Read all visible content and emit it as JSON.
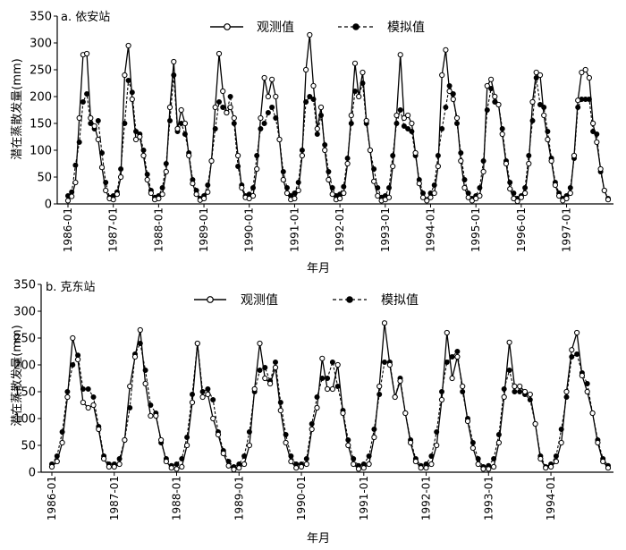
{
  "chart_data": [
    {
      "type": "line",
      "panel_label": "a. 依安站",
      "xlabel": "年月",
      "ylabel": "潜在蒸散发量(mm)",
      "ylim": [
        0,
        350
      ],
      "yticks": [
        0,
        50,
        100,
        150,
        200,
        250,
        300,
        350
      ],
      "x_start": "1986-01",
      "x_end": "1997-12",
      "xtick_labels": [
        "1986-01",
        "1987-01",
        "1988-01",
        "1989-01",
        "1990-01",
        "1991-01",
        "1992-01",
        "1993-01",
        "1994-01",
        "1995-01",
        "1996-01",
        "1997-01"
      ],
      "legend_position": "top-center",
      "series": [
        {
          "name": "观测值",
          "marker": "open-circle",
          "line": "solid",
          "values": [
            6,
            14,
            40,
            160,
            278,
            280,
            160,
            145,
            120,
            68,
            25,
            10,
            8,
            18,
            50,
            240,
            295,
            195,
            120,
            125,
            90,
            45,
            20,
            8,
            10,
            18,
            60,
            180,
            265,
            140,
            175,
            150,
            90,
            38,
            18,
            7,
            10,
            22,
            80,
            180,
            280,
            210,
            170,
            180,
            160,
            90,
            30,
            12,
            10,
            15,
            65,
            160,
            235,
            200,
            232,
            200,
            120,
            45,
            20,
            8,
            10,
            25,
            90,
            250,
            315,
            220,
            140,
            180,
            100,
            45,
            18,
            8,
            10,
            20,
            75,
            165,
            262,
            200,
            245,
            155,
            100,
            42,
            15,
            6,
            8,
            12,
            70,
            165,
            278,
            160,
            165,
            150,
            95,
            38,
            12,
            6,
            12,
            20,
            70,
            240,
            287,
            210,
            195,
            160,
            80,
            30,
            12,
            6,
            10,
            15,
            60,
            220,
            232,
            200,
            185,
            130,
            75,
            28,
            10,
            5,
            12,
            20,
            75,
            190,
            245,
            240,
            165,
            120,
            80,
            35,
            15,
            6,
            10,
            20,
            90,
            193,
            245,
            250,
            235,
            150,
            115,
            65,
            25,
            8
          ]
        },
        {
          "name": "模拟值",
          "marker": "filled-circle",
          "line": "dashed",
          "values": [
            15,
            22,
            72,
            115,
            190,
            205,
            150,
            140,
            155,
            95,
            40,
            12,
            15,
            22,
            65,
            150,
            230,
            208,
            135,
            130,
            100,
            55,
            25,
            12,
            15,
            30,
            75,
            155,
            240,
            135,
            150,
            130,
            95,
            45,
            25,
            10,
            15,
            35,
            80,
            140,
            190,
            180,
            170,
            200,
            150,
            70,
            35,
            15,
            18,
            30,
            90,
            140,
            150,
            170,
            180,
            160,
            120,
            60,
            30,
            15,
            20,
            40,
            100,
            190,
            200,
            195,
            130,
            165,
            110,
            60,
            30,
            15,
            18,
            32,
            85,
            150,
            210,
            200,
            225,
            150,
            100,
            65,
            30,
            12,
            15,
            30,
            90,
            150,
            175,
            145,
            140,
            135,
            90,
            45,
            20,
            8,
            20,
            35,
            90,
            140,
            180,
            220,
            205,
            150,
            95,
            45,
            20,
            10,
            15,
            30,
            80,
            175,
            215,
            190,
            185,
            140,
            80,
            40,
            20,
            10,
            15,
            30,
            90,
            155,
            235,
            185,
            180,
            135,
            85,
            40,
            20,
            10,
            15,
            30,
            85,
            180,
            195,
            195,
            195,
            135,
            130,
            60,
            25,
            10
          ]
        }
      ]
    },
    {
      "type": "line",
      "panel_label": "b. 克东站",
      "xlabel": "年月",
      "ylabel": "潜在蒸散发量(mm)",
      "ylim": [
        0,
        350
      ],
      "yticks": [
        0,
        50,
        100,
        150,
        200,
        250,
        300,
        350
      ],
      "x_start": "1986-01",
      "x_end": "1994-12",
      "xtick_labels": [
        "1986-01",
        "1987-01",
        "1988-01",
        "1989-01",
        "1990-01",
        "1991-01",
        "1992-01",
        "1993-01",
        "1994-01"
      ],
      "legend_position": "top-center",
      "series": [
        {
          "name": "观测值",
          "marker": "open-circle",
          "line": "solid",
          "values": [
            10,
            20,
            55,
            140,
            250,
            210,
            130,
            120,
            125,
            80,
            25,
            10,
            10,
            15,
            60,
            160,
            215,
            265,
            165,
            105,
            105,
            60,
            20,
            8,
            6,
            10,
            50,
            130,
            240,
            140,
            145,
            100,
            70,
            35,
            12,
            5,
            8,
            15,
            50,
            155,
            240,
            175,
            165,
            195,
            115,
            55,
            20,
            8,
            10,
            15,
            80,
            120,
            212,
            155,
            155,
            200,
            110,
            50,
            15,
            6,
            8,
            15,
            65,
            160,
            278,
            200,
            140,
            170,
            110,
            55,
            20,
            8,
            8,
            15,
            50,
            135,
            260,
            175,
            215,
            160,
            95,
            45,
            15,
            6,
            6,
            10,
            55,
            140,
            242,
            160,
            160,
            150,
            145,
            90,
            25,
            8,
            10,
            20,
            55,
            150,
            228,
            260,
            180,
            150,
            110,
            55,
            20,
            8
          ]
        },
        {
          "name": "模拟值",
          "marker": "filled-circle",
          "line": "dashed",
          "values": [
            15,
            30,
            75,
            150,
            200,
            218,
            155,
            155,
            140,
            85,
            30,
            15,
            15,
            25,
            60,
            120,
            220,
            240,
            190,
            125,
            110,
            55,
            25,
            12,
            15,
            25,
            65,
            145,
            240,
            150,
            155,
            135,
            75,
            40,
            20,
            10,
            15,
            30,
            75,
            150,
            190,
            195,
            170,
            205,
            130,
            70,
            30,
            15,
            15,
            25,
            90,
            140,
            175,
            175,
            205,
            160,
            115,
            60,
            25,
            12,
            15,
            30,
            80,
            145,
            205,
            205,
            140,
            175,
            110,
            60,
            25,
            12,
            15,
            30,
            75,
            150,
            205,
            215,
            225,
            150,
            100,
            55,
            25,
            10,
            12,
            25,
            70,
            155,
            190,
            150,
            150,
            145,
            135,
            90,
            30,
            10,
            15,
            30,
            80,
            140,
            215,
            220,
            185,
            165,
            110,
            60,
            25,
            12
          ]
        }
      ]
    }
  ]
}
